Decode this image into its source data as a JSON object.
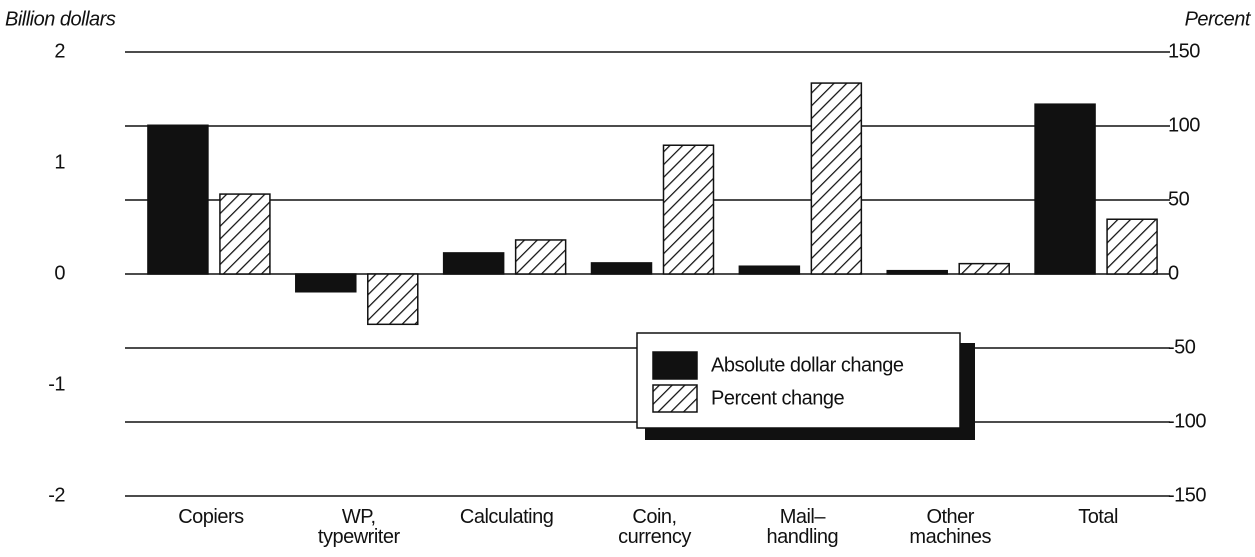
{
  "chart_data": {
    "type": "bar",
    "y_label": "Billion dollars",
    "y2_label": "Percent",
    "categories": [
      "Copiers",
      "WP,\ntypewriter",
      "Calculating",
      "Coin,\ncurrency",
      "Mail–\nhandling",
      "Other\nmachines",
      "Total"
    ],
    "series": [
      {
        "name": "Absolute dollar change",
        "color": "#111111",
        "values": [
          1.34,
          -0.16,
          0.19,
          0.1,
          0.07,
          0.03,
          1.53
        ]
      },
      {
        "name": "Percent change",
        "color": "#111111",
        "pattern": "diagonal-hatch",
        "axis": "y2",
        "values": [
          54,
          -34,
          23,
          87,
          129,
          7,
          37
        ]
      }
    ],
    "ylim": [
      -2,
      2
    ],
    "yticks": [
      -2,
      -1,
      0,
      1,
      2
    ],
    "y2lim": [
      -150,
      150
    ],
    "y2ticks": [
      -150,
      -100,
      -50,
      0,
      50,
      100,
      150
    ],
    "grid": true
  }
}
